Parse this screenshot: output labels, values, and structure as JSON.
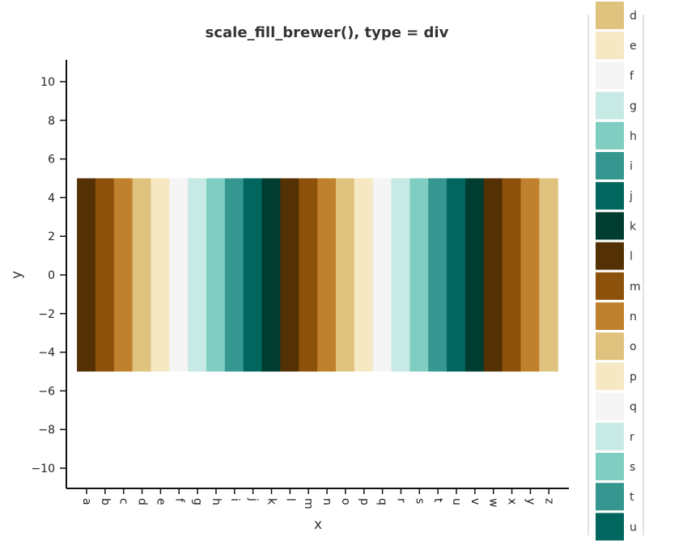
{
  "chart_data": {
    "type": "bar",
    "title": "scale_fill_brewer(), type = div",
    "xlabel": "x",
    "ylabel": "y",
    "categories": [
      "a",
      "b",
      "c",
      "d",
      "e",
      "f",
      "g",
      "h",
      "i",
      "j",
      "k",
      "l",
      "m",
      "n",
      "o",
      "p",
      "q",
      "r",
      "s",
      "t",
      "u",
      "v",
      "w",
      "x",
      "y",
      "z"
    ],
    "y_bottom": -5,
    "y_top": 5,
    "ylim": [
      -11,
      11
    ],
    "yticks": [
      -10,
      -8,
      -6,
      -4,
      -2,
      0,
      2,
      4,
      6,
      8,
      10
    ],
    "palette": [
      "#543005",
      "#8c510a",
      "#bf812d",
      "#dfc27d",
      "#f6e8c3",
      "#f5f5f5",
      "#c7eae5",
      "#80cdc1",
      "#35978f",
      "#01665e",
      "#003c30"
    ],
    "grid": false,
    "legend": {
      "placement": "right",
      "visible_entries": [
        "d",
        "e",
        "f",
        "g",
        "h",
        "i",
        "j",
        "k",
        "l",
        "m",
        "n",
        "o",
        "p",
        "q",
        "r",
        "s",
        "t",
        "u"
      ]
    }
  }
}
